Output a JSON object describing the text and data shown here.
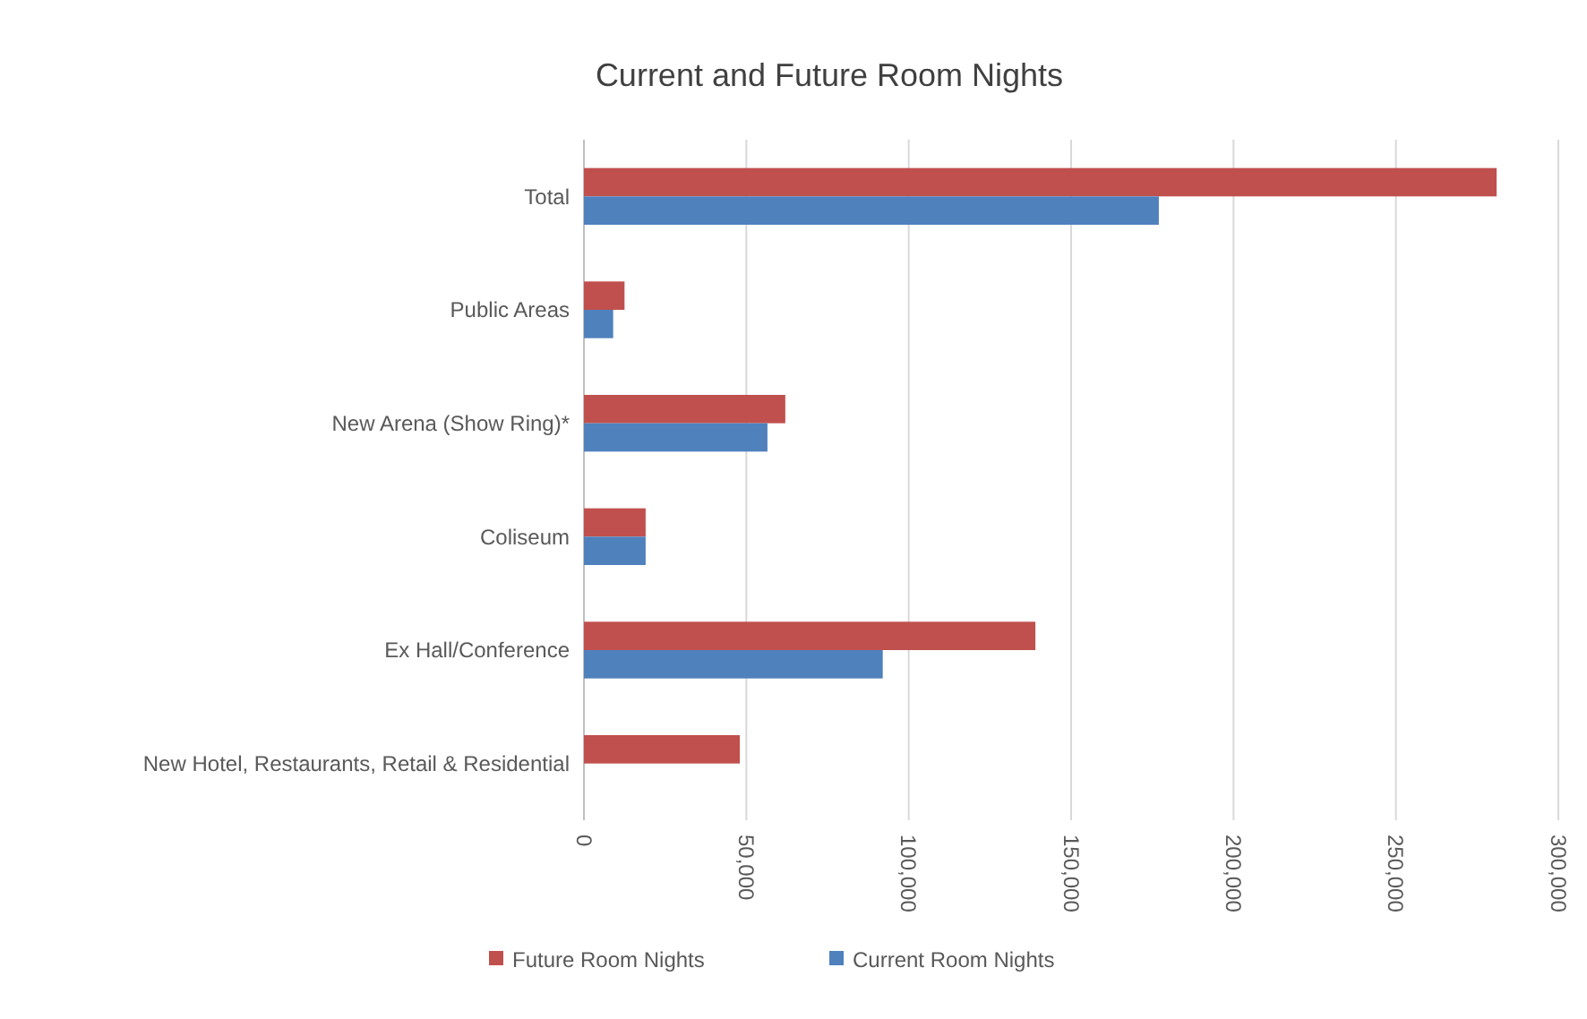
{
  "chart_data": {
    "type": "bar",
    "orientation": "horizontal",
    "title": "Current and Future Room Nights",
    "categories": [
      "Total",
      "Public Areas",
      "New Arena (Show Ring)*",
      "Coliseum",
      "Ex Hall/Conference",
      "New Hotel, Restaurants, Retail & Residential"
    ],
    "series": [
      {
        "name": "Future Room Nights",
        "color": "#c0504d",
        "values": [
          281000,
          12500,
          62000,
          19000,
          139000,
          48000
        ]
      },
      {
        "name": "Current Room Nights",
        "color": "#4f81bd",
        "values": [
          177000,
          9000,
          56500,
          19000,
          92000,
          0
        ]
      }
    ],
    "xlim": [
      0,
      300000
    ],
    "xticks": [
      0,
      {
        "value": 50000,
        "label": "50,000"
      },
      {
        "value": 100000,
        "label": "100,000"
      },
      {
        "value": 150000,
        "label": "150,000"
      },
      {
        "value": 200000,
        "label": "200,000"
      },
      {
        "value": 250000,
        "label": "250,000"
      },
      {
        "value": 300000,
        "label": "300,000"
      }
    ],
    "grid": "x",
    "legend": "bottom"
  }
}
